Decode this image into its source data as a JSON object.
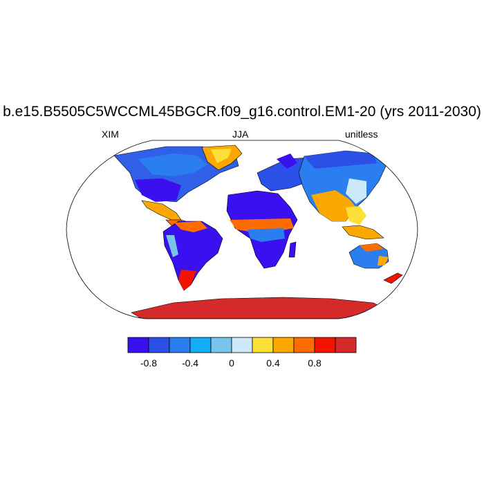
{
  "plot": {
    "title": "b.e15.B5505C5WCCML45BGCR.f09_g16.control.EM1-20 (yrs 2011-2030)",
    "left_string": "XIM",
    "center_string": "JJA",
    "right_string": "unitless"
  },
  "colorbar": {
    "levels": [
      "-0.8",
      "-0.4",
      "0",
      "0.4",
      "0.8"
    ],
    "colors": [
      "#3a10f0",
      "#2a50e8",
      "#2a7ef0",
      "#12aef8",
      "#78c4ea",
      "#cde8f6",
      "#fce038",
      "#fca800",
      "#fc6c00",
      "#f21400",
      "#d42a2a"
    ]
  },
  "map": {
    "projection": "Robinson",
    "ocean": "#ffffff",
    "coastline": "#000000"
  }
}
